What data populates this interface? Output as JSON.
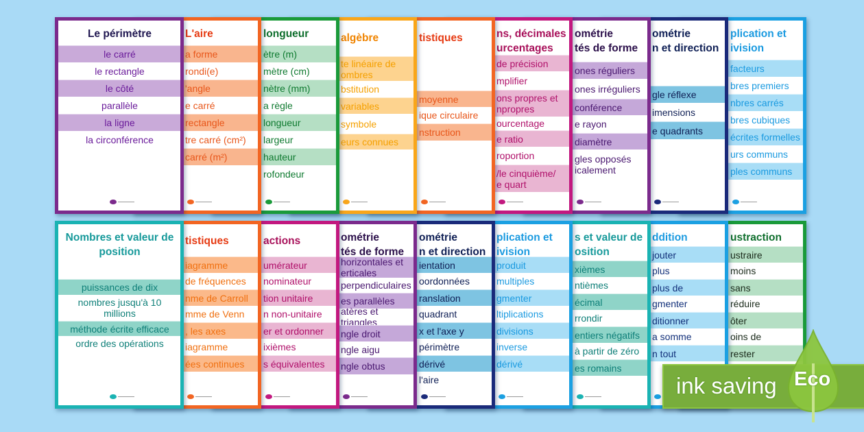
{
  "top_row": [
    {
      "title": "Le périmètre",
      "border": "#7b2a8c",
      "title_color": "#1f1650",
      "text_color": "#6a1b9a",
      "shade": "#c9aad9",
      "items": [
        {
          "text": "le carré",
          "shaded": true
        },
        {
          "text": "le rectangle",
          "shaded": false
        },
        {
          "text": "le côté",
          "shaded": true
        },
        {
          "text": "parallèle",
          "shaded": false
        },
        {
          "text": "la ligne",
          "shaded": true
        },
        {
          "text": "la circonférence",
          "shaded": false
        }
      ]
    },
    {
      "title": "L'aire",
      "border": "#f26522",
      "title_color": "#e63a12",
      "text_color": "#e8561a",
      "shade": "#f9b58e",
      "items": [
        {
          "text": "a forme",
          "shaded": true
        },
        {
          "text": "rondi(e)",
          "shaded": false
        },
        {
          "text": "'angle",
          "shaded": true
        },
        {
          "text": "e carré",
          "shaded": false
        },
        {
          "text": "rectangle",
          "shaded": true
        },
        {
          "text": "tre carré (cm²)",
          "shaded": false
        },
        {
          "text": "carré (m²)",
          "shaded": true
        }
      ]
    },
    {
      "title": "longueur",
      "border": "#1a9a3a",
      "title_color": "#0e6e2c",
      "text_color": "#0f7a30",
      "shade": "#b5dfc4",
      "items": [
        {
          "text": "ètre (m)",
          "shaded": true
        },
        {
          "text": "mètre (cm)",
          "shaded": false
        },
        {
          "text": "nètre (mm)",
          "shaded": true
        },
        {
          "text": "a règle",
          "shaded": false
        },
        {
          "text": "longueur",
          "shaded": true
        },
        {
          "text": "largeur",
          "shaded": false
        },
        {
          "text": "hauteur",
          "shaded": true
        },
        {
          "text": "rofondeur",
          "shaded": false
        }
      ]
    },
    {
      "title": "algèbre",
      "border": "#f9a61a",
      "title_color": "#f08400",
      "text_color": "#f5a000",
      "shade": "#fdd38f",
      "items": [
        {
          "text": "te linéaire de\nombres",
          "shaded": true
        },
        {
          "text": "bstitution",
          "shaded": false
        },
        {
          "text": "variables",
          "shaded": true
        },
        {
          "text": "symbole",
          "shaded": false
        },
        {
          "text": "eurs connues",
          "shaded": true
        }
      ]
    },
    {
      "title": "tistiques",
      "border": "#f26522",
      "title_color": "#e63a12",
      "text_color": "#e8561a",
      "shade": "#f9b58e",
      "items": [
        {
          "text": "moyenne",
          "shaded": true
        },
        {
          "text": "ique circulaire",
          "shaded": false
        },
        {
          "text": "nstruction",
          "shaded": true
        }
      ]
    },
    {
      "title": "ns, décimales\nurcentages",
      "border": "#c2187f",
      "title_color": "#a8105a",
      "text_color": "#b0106a",
      "shade": "#e9b5d2",
      "items": [
        {
          "text": "de précision",
          "shaded": true
        },
        {
          "text": "mplifier",
          "shaded": false
        },
        {
          "text": "ons propres et\nnpropres",
          "shaded": true
        },
        {
          "text": "ourcentage",
          "shaded": false
        },
        {
          "text": "e ratio",
          "shaded": true
        },
        {
          "text": "roportion",
          "shaded": false
        },
        {
          "text": "/le cinquième/\ne quart",
          "shaded": true
        }
      ]
    },
    {
      "title": "ométrie\ntés de forme",
      "border": "#7b2a8c",
      "title_color": "#2b0f4a",
      "text_color": "#4a1870",
      "shade": "#c5a8d9",
      "items": [
        {
          "text": "ones réguliers",
          "shaded": true
        },
        {
          "text": "ones irréguliers",
          "shaded": false
        },
        {
          "text": "conférence",
          "shaded": true
        },
        {
          "text": "e rayon",
          "shaded": false
        },
        {
          "text": "diamètre",
          "shaded": true
        },
        {
          "text": "gles opposés\nicalement",
          "shaded": false
        }
      ]
    },
    {
      "title": "ométrie\nn et direction",
      "border": "#1a2a7a",
      "title_color": "#0f1f55",
      "text_color": "#0f1f55",
      "shade": "#7ec4e2",
      "items": [
        {
          "text": "gle réflexe",
          "shaded": true
        },
        {
          "text": "imensions",
          "shaded": false
        },
        {
          "text": "e quadrants",
          "shaded": true
        }
      ]
    },
    {
      "title": "plication et\nivision",
      "border": "#1ba0e2",
      "title_color": "#1a9ae0",
      "text_color": "#1a9ae0",
      "shade": "#a8ddf6",
      "items": [
        {
          "text": "facteurs",
          "shaded": true
        },
        {
          "text": "bres premiers",
          "shaded": false
        },
        {
          "text": "nbres carrés",
          "shaded": true
        },
        {
          "text": "bres cubiques",
          "shaded": false
        },
        {
          "text": "écrites formelles",
          "shaded": true
        },
        {
          "text": "urs communs",
          "shaded": false
        },
        {
          "text": "ples communs",
          "shaded": true
        }
      ]
    }
  ],
  "bottom_row": [
    {
      "title": "Nombres et valeur de\nposition",
      "border": "#1ab3b3",
      "title_color": "#16999a",
      "text_color": "#0e7f78",
      "shade": "#8fd4c8",
      "items": [
        {
          "text": "puissances de dix",
          "shaded": true
        },
        {
          "text": "nombres jusqu'à 10\nmillions",
          "shaded": false
        },
        {
          "text": "méthode écrite efficace",
          "shaded": true
        },
        {
          "text": "ordre des opérations",
          "shaded": false
        }
      ]
    },
    {
      "title": "tistiques",
      "border": "#f26522",
      "title_color": "#e63a12",
      "text_color": "#f07010",
      "shade": "#fbb98a",
      "items": [
        {
          "text": "iagramme",
          "shaded": true
        },
        {
          "text": "de fréquences",
          "shaded": false
        },
        {
          "text": "nme de Carroll",
          "shaded": true
        },
        {
          "text": "mme de Venn",
          "shaded": false
        },
        {
          "text": ", les axes",
          "shaded": true
        },
        {
          "text": "iagramme",
          "shaded": false
        },
        {
          "text": "ées continues",
          "shaded": true
        }
      ]
    },
    {
      "title": "actions",
      "border": "#c2187f",
      "title_color": "#a8105a",
      "text_color": "#b0106a",
      "shade": "#e9b5d2",
      "items": [
        {
          "text": "umérateur",
          "shaded": true
        },
        {
          "text": "nominateur",
          "shaded": false
        },
        {
          "text": "tion unitaire",
          "shaded": true
        },
        {
          "text": "n non-unitaire",
          "shaded": false
        },
        {
          "text": "er et ordonner",
          "shaded": true
        },
        {
          "text": "ixièmes",
          "shaded": false
        },
        {
          "text": "s équivalentes",
          "shaded": true
        }
      ]
    },
    {
      "title": "ométrie\ntés de forme",
      "border": "#7b2a8c",
      "title_color": "#2b0f4a",
      "text_color": "#4a1870",
      "shade": "#c5a8d9",
      "items": [
        {
          "text": "horizontales et\nerticales",
          "shaded": true
        },
        {
          "text": "perpendiculaires",
          "shaded": false
        },
        {
          "text": "es parallèles",
          "shaded": true
        },
        {
          "text": "atères et triangles",
          "shaded": false
        },
        {
          "text": "ngle droit",
          "shaded": true
        },
        {
          "text": "ngle aigu",
          "shaded": false
        },
        {
          "text": "ngle obtus",
          "shaded": true
        }
      ]
    },
    {
      "title": "ométrie\nn et direction",
      "border": "#1a2a7a",
      "title_color": "#0f1f55",
      "text_color": "#0f1f55",
      "shade": "#7ec4e2",
      "items": [
        {
          "text": "ientation",
          "shaded": true
        },
        {
          "text": "oordonnées",
          "shaded": false
        },
        {
          "text": "ranslation",
          "shaded": true
        },
        {
          "text": "quadrant",
          "shaded": false
        },
        {
          "text": "x et l'axe y",
          "shaded": true
        },
        {
          "text": "périmètre",
          "shaded": false
        },
        {
          "text": "dérivé",
          "shaded": true
        },
        {
          "text": "l'aire",
          "shaded": false
        }
      ]
    },
    {
      "title": "plication et\nivision",
      "border": "#1ba0e2",
      "title_color": "#1a9ae0",
      "text_color": "#1a9ae0",
      "shade": "#a8ddf6",
      "items": [
        {
          "text": "produit",
          "shaded": true
        },
        {
          "text": "multiples",
          "shaded": false
        },
        {
          "text": "gmenter",
          "shaded": true
        },
        {
          "text": "ltiplications",
          "shaded": false
        },
        {
          "text": "divisions",
          "shaded": true
        },
        {
          "text": "inverse",
          "shaded": false
        },
        {
          "text": "dérivé",
          "shaded": true
        }
      ]
    },
    {
      "title": "s et valeur de\nosition",
      "border": "#1ab3b3",
      "title_color": "#16999a",
      "text_color": "#0e7f78",
      "shade": "#8fd4c8",
      "items": [
        {
          "text": "xièmes",
          "shaded": true
        },
        {
          "text": "ntièmes",
          "shaded": false
        },
        {
          "text": "écimal",
          "shaded": true
        },
        {
          "text": "rrondir",
          "shaded": false
        },
        {
          "text": "entiers négatifs",
          "shaded": true
        },
        {
          "text": "à partir de zéro",
          "shaded": false
        },
        {
          "text": "es romains",
          "shaded": true
        }
      ]
    },
    {
      "title": "ddition",
      "border": "#1ba0e2",
      "title_color": "#1a9ae0",
      "text_color": "#12307a",
      "shade": "#a8ddf6",
      "items": [
        {
          "text": "jouter",
          "shaded": true
        },
        {
          "text": "plus",
          "shaded": false
        },
        {
          "text": "plus de",
          "shaded": true
        },
        {
          "text": "gmenter",
          "shaded": false
        },
        {
          "text": "ditionner",
          "shaded": true
        },
        {
          "text": "a somme",
          "shaded": false
        },
        {
          "text": "n tout",
          "shaded": true
        }
      ]
    },
    {
      "title": "ustraction",
      "border": "#1a9a3a",
      "title_color": "#0e6e2c",
      "text_color": "#1a2a1a",
      "shade": "#b5dfc4",
      "items": [
        {
          "text": "ustraire",
          "shaded": true
        },
        {
          "text": "moins",
          "shaded": false
        },
        {
          "text": "sans",
          "shaded": true
        },
        {
          "text": "réduire",
          "shaded": false
        },
        {
          "text": "ôter",
          "shaded": true
        },
        {
          "text": "oins de",
          "shaded": false
        },
        {
          "text": "rester",
          "shaded": true
        }
      ]
    }
  ],
  "badge": {
    "label": "ink saving",
    "eco_label": "Eco",
    "color": "#78ad3c",
    "leaf_color": "#8cc63f"
  }
}
